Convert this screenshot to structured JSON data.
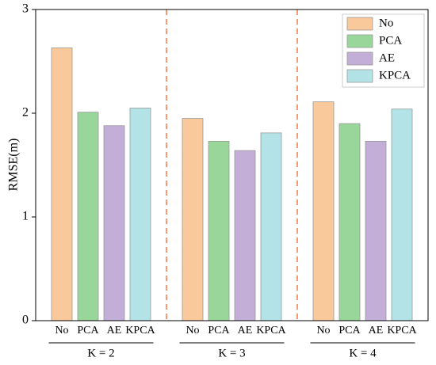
{
  "chart_data": {
    "type": "bar",
    "ylabel": "RMSE(m)",
    "categories": [
      "K = 2",
      "K = 3",
      "K = 4"
    ],
    "series": [
      {
        "name": "No",
        "color": "#f9c89b",
        "values": [
          2.63,
          1.95,
          2.11
        ]
      },
      {
        "name": "PCA",
        "color": "#98d69a",
        "values": [
          2.01,
          1.73,
          1.9
        ]
      },
      {
        "name": "AE",
        "color": "#c3aed8",
        "values": [
          1.88,
          1.64,
          1.73
        ]
      },
      {
        "name": "KPCA",
        "color": "#b3e3e6",
        "values": [
          2.05,
          1.81,
          2.04
        ]
      }
    ],
    "ylim": [
      0,
      3
    ],
    "yticks": [
      0,
      1,
      2,
      3
    ],
    "legend": "upper right"
  }
}
